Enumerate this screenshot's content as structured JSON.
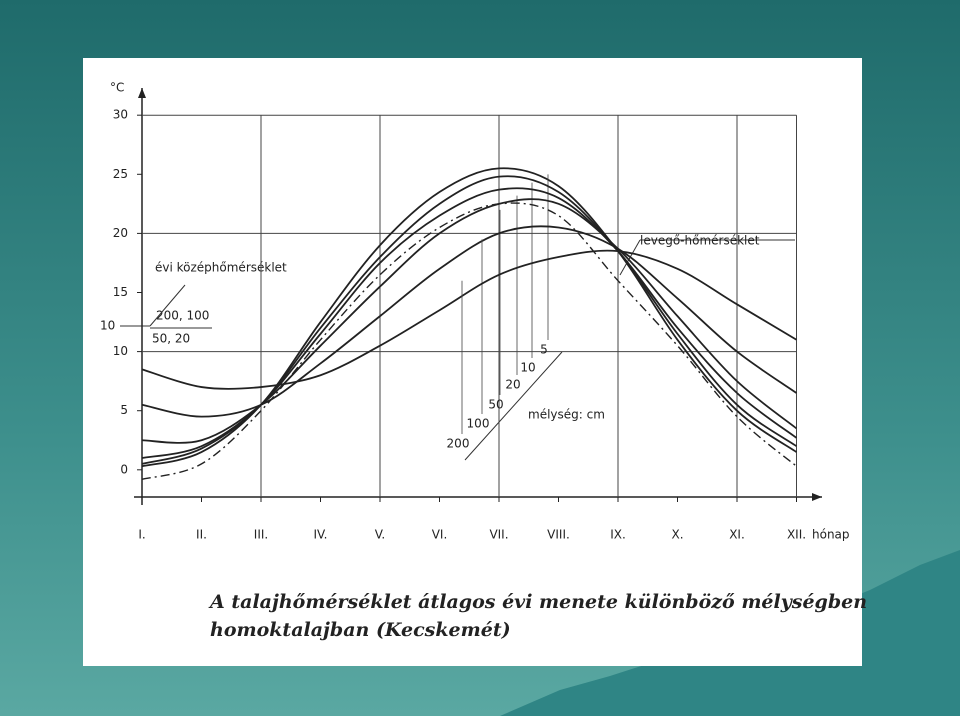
{
  "chart_data": {
    "type": "line",
    "title": "A talajhőmérséklet átlagos évi menete különböző mélységben homoktalajban (Kecskemét)",
    "y_label": "°C",
    "x_label": "hónap",
    "categories": [
      "I.",
      "II.",
      "III.",
      "IV.",
      "V.",
      "VI.",
      "VII.",
      "VIII.",
      "IX.",
      "X.",
      "XI.",
      "XII."
    ],
    "series": [
      {
        "name": "5",
        "color": "#222222",
        "values": [
          0.3,
          1.5,
          5.5,
          12.5,
          19,
          23.5,
          25.5,
          24,
          18.5,
          11,
          5,
          1.5
        ]
      },
      {
        "name": "10",
        "color": "#222222",
        "values": [
          0.5,
          1.8,
          5.5,
          12,
          18,
          22.5,
          24.8,
          23.5,
          18.5,
          11.5,
          5.5,
          2
        ]
      },
      {
        "name": "20",
        "color": "#222222",
        "values": [
          1,
          2,
          5.5,
          11.5,
          17.5,
          21.5,
          23.7,
          23,
          18.5,
          12,
          6.5,
          2.7
        ]
      },
      {
        "name": "50",
        "color": "#222222",
        "values": [
          2.5,
          2.5,
          5.5,
          10.5,
          15.5,
          20,
          22.5,
          22.5,
          18.7,
          13,
          7.5,
          3.5
        ]
      },
      {
        "name": "100",
        "color": "#222222",
        "values": [
          5.5,
          4.5,
          5.5,
          9,
          13,
          17,
          20,
          20.5,
          18.7,
          14.5,
          10,
          6.5
        ]
      },
      {
        "name": "200",
        "color": "#222222",
        "values": [
          8.5,
          7,
          7,
          8,
          10.5,
          13.5,
          16.5,
          18,
          18.5,
          17,
          14,
          11
        ]
      },
      {
        "name": "levegő-hőmérséklet",
        "color": "#222222",
        "dashed": true,
        "values": [
          -0.8,
          0.5,
          5,
          11,
          16.5,
          20.5,
          22.5,
          21.5,
          16,
          10.5,
          4.5,
          0.3
        ]
      }
    ],
    "ylim": [
      -2.3,
      32.3
    ],
    "yticks": [
      0,
      5,
      10,
      15,
      20,
      25,
      30
    ],
    "ygrid": [
      10,
      20,
      30
    ],
    "xgrid": [
      2,
      4,
      6,
      8,
      10
    ],
    "annotations": {
      "mean_title": "évi középhőmérséklet",
      "mean_a": "200, 100",
      "mean_b": "50, 20",
      "mean_c": "10",
      "depth": "mélység: cm"
    }
  }
}
